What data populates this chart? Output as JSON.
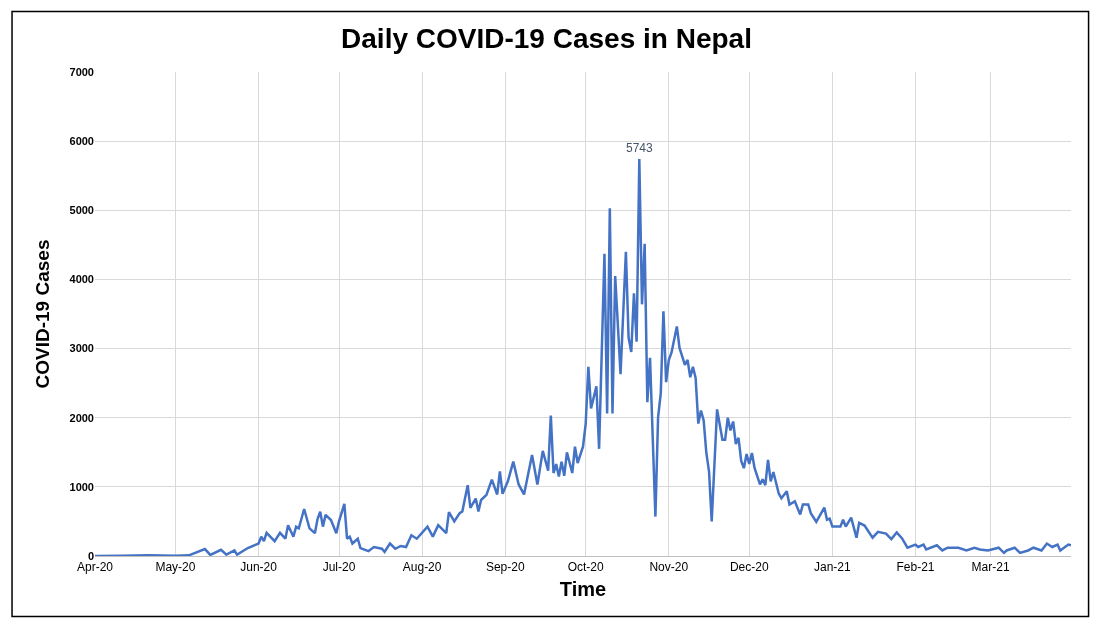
{
  "chart_data": {
    "type": "line",
    "title": "Daily COVID-19 Cases in Nepal",
    "xlabel": "Time",
    "ylabel": "COVID-19 Cases",
    "x": [
      "2020-04-01",
      "2020-04-11",
      "2020-04-21",
      "2020-05-01",
      "2020-05-06",
      "2020-05-12",
      "2020-05-14",
      "2020-05-18",
      "2020-05-20",
      "2020-05-23",
      "2020-05-24",
      "2020-05-28",
      "2020-06-01",
      "2020-06-02",
      "2020-06-03",
      "2020-06-04",
      "2020-06-07",
      "2020-06-09",
      "2020-06-11",
      "2020-06-12",
      "2020-06-14",
      "2020-06-15",
      "2020-06-16",
      "2020-06-18",
      "2020-06-20",
      "2020-06-22",
      "2020-06-23",
      "2020-06-24",
      "2020-06-25",
      "2020-06-26",
      "2020-06-28",
      "2020-06-30",
      "2020-07-01",
      "2020-07-03",
      "2020-07-04",
      "2020-07-05",
      "2020-07-06",
      "2020-07-08",
      "2020-07-09",
      "2020-07-12",
      "2020-07-14",
      "2020-07-17",
      "2020-07-18",
      "2020-07-20",
      "2020-07-22",
      "2020-07-24",
      "2020-07-26",
      "2020-07-28",
      "2020-07-30",
      "2020-08-03",
      "2020-08-05",
      "2020-08-07",
      "2020-08-10",
      "2020-08-11",
      "2020-08-13",
      "2020-08-15",
      "2020-08-16",
      "2020-08-18",
      "2020-08-19",
      "2020-08-21",
      "2020-08-22",
      "2020-08-23",
      "2020-08-25",
      "2020-08-27",
      "2020-08-29",
      "2020-08-30",
      "2020-08-31",
      "2020-09-02",
      "2020-09-04",
      "2020-09-06",
      "2020-09-08",
      "2020-09-11",
      "2020-09-13",
      "2020-09-15",
      "2020-09-17",
      "2020-09-18",
      "2020-09-19",
      "2020-09-20",
      "2020-09-21",
      "2020-09-22",
      "2020-09-23",
      "2020-09-24",
      "2020-09-26",
      "2020-09-27",
      "2020-09-28",
      "2020-09-30",
      "2020-10-01",
      "2020-10-02",
      "2020-10-03",
      "2020-10-05",
      "2020-10-06",
      "2020-10-08",
      "2020-10-09",
      "2020-10-10",
      "2020-10-11",
      "2020-10-12",
      "2020-10-14",
      "2020-10-16",
      "2020-10-17",
      "2020-10-18",
      "2020-10-19",
      "2020-10-20",
      "2020-10-21",
      "2020-10-22",
      "2020-10-23",
      "2020-10-24",
      "2020-10-25",
      "2020-10-27",
      "2020-10-28",
      "2020-10-29",
      "2020-10-30",
      "2020-10-31",
      "2020-11-01",
      "2020-11-02",
      "2020-11-04",
      "2020-11-05",
      "2020-11-07",
      "2020-11-08",
      "2020-11-09",
      "2020-11-10",
      "2020-11-11",
      "2020-11-12",
      "2020-11-13",
      "2020-11-14",
      "2020-11-15",
      "2020-11-16",
      "2020-11-17",
      "2020-11-19",
      "2020-11-21",
      "2020-11-22",
      "2020-11-23",
      "2020-11-24",
      "2020-11-25",
      "2020-11-26",
      "2020-11-27",
      "2020-11-28",
      "2020-11-29",
      "2020-11-30",
      "2020-12-01",
      "2020-12-02",
      "2020-12-03",
      "2020-12-05",
      "2020-12-06",
      "2020-12-07",
      "2020-12-08",
      "2020-12-09",
      "2020-12-10",
      "2020-12-12",
      "2020-12-13",
      "2020-12-15",
      "2020-12-16",
      "2020-12-18",
      "2020-12-20",
      "2020-12-21",
      "2020-12-23",
      "2020-12-24",
      "2020-12-26",
      "2020-12-29",
      "2020-12-30",
      "2020-12-31",
      "2021-01-01",
      "2021-01-04",
      "2021-01-05",
      "2021-01-06",
      "2021-01-08",
      "2021-01-10",
      "2021-01-11",
      "2021-01-13",
      "2021-01-16",
      "2021-01-18",
      "2021-01-21",
      "2021-01-23",
      "2021-01-25",
      "2021-01-27",
      "2021-01-29",
      "2021-02-01",
      "2021-02-02",
      "2021-02-04",
      "2021-02-05",
      "2021-02-09",
      "2021-02-11",
      "2021-02-13",
      "2021-02-17",
      "2021-02-20",
      "2021-02-23",
      "2021-02-25",
      "2021-02-28",
      "2021-03-04",
      "2021-03-06",
      "2021-03-07",
      "2021-03-10",
      "2021-03-12",
      "2021-03-15",
      "2021-03-17",
      "2021-03-20",
      "2021-03-22",
      "2021-03-24",
      "2021-03-26",
      "2021-03-27",
      "2021-03-30",
      "2021-03-31"
    ],
    "series": [
      {
        "color": "#4472c4",
        "values": [
          0,
          5,
          10,
          5,
          10,
          100,
          15,
          90,
          20,
          80,
          20,
          115,
          180,
          280,
          215,
          335,
          215,
          335,
          250,
          445,
          280,
          425,
          400,
          680,
          400,
          330,
          535,
          640,
          425,
          595,
          520,
          330,
          500,
          755,
          250,
          280,
          180,
          250,
          115,
          70,
          130,
          105,
          60,
          180,
          105,
          145,
          130,
          300,
          250,
          425,
          280,
          445,
          330,
          635,
          500,
          620,
          645,
          1025,
          695,
          830,
          645,
          810,
          885,
          1105,
          890,
          1225,
          900,
          1085,
          1365,
          1035,
          890,
          1460,
          1035,
          1520,
          1235,
          2030,
          1200,
          1330,
          1150,
          1365,
          1160,
          1500,
          1200,
          1580,
          1345,
          1580,
          1910,
          2735,
          2135,
          2455,
          1550,
          4370,
          2060,
          5030,
          2060,
          4050,
          2630,
          4400,
          3160,
          2950,
          3800,
          3100,
          5743,
          3640,
          4515,
          2225,
          2865,
          570,
          2005,
          2350,
          3540,
          2515,
          2835,
          2940,
          3320,
          3010,
          2765,
          2835,
          2585,
          2735,
          2575,
          1915,
          2105,
          1960,
          1490,
          1225,
          500,
          2120,
          1680,
          1680,
          2000,
          1815,
          1945,
          1620,
          1710,
          1375,
          1270,
          1475,
          1330,
          1490,
          1270,
          1035,
          1110,
          1025,
          1390,
          1080,
          1215,
          905,
          835,
          935,
          745,
          790,
          600,
          745,
          745,
          615,
          495,
          700,
          525,
          540,
          425,
          425,
          525,
          425,
          555,
          265,
          480,
          440,
          265,
          350,
          325,
          245,
          340,
          255,
          120,
          165,
          130,
          165,
          95,
          155,
          80,
          120,
          120,
          80,
          120,
          95,
          80,
          120,
          45,
          80,
          120,
          45,
          80,
          120,
          80,
          180,
          130,
          165,
          80,
          165,
          155
        ]
      }
    ],
    "annotations": [
      {
        "text": "5743",
        "x": "2020-10-21",
        "y": 5743
      }
    ],
    "xlim": [
      "2020-04-01",
      "2021-03-31"
    ],
    "xticks": [
      {
        "value": "2020-04-01",
        "label": "Apr-20"
      },
      {
        "value": "2020-05-01",
        "label": "May-20"
      },
      {
        "value": "2020-06-01",
        "label": "Jun-20"
      },
      {
        "value": "2020-07-01",
        "label": "Jul-20"
      },
      {
        "value": "2020-08-01",
        "label": "Aug-20"
      },
      {
        "value": "2020-09-01",
        "label": "Sep-20"
      },
      {
        "value": "2020-10-01",
        "label": "Oct-20"
      },
      {
        "value": "2020-11-01",
        "label": "Nov-20"
      },
      {
        "value": "2020-12-01",
        "label": "Dec-20"
      },
      {
        "value": "2021-01-01",
        "label": "Jan-21"
      },
      {
        "value": "2021-02-01",
        "label": "Feb-21"
      },
      {
        "value": "2021-03-01",
        "label": "Mar-21"
      }
    ],
    "ylim": [
      0,
      7000
    ],
    "yticks": [
      0,
      1000,
      2000,
      3000,
      4000,
      5000,
      6000,
      7000
    ],
    "grid": true,
    "marker": "none",
    "line_style": "solid"
  }
}
